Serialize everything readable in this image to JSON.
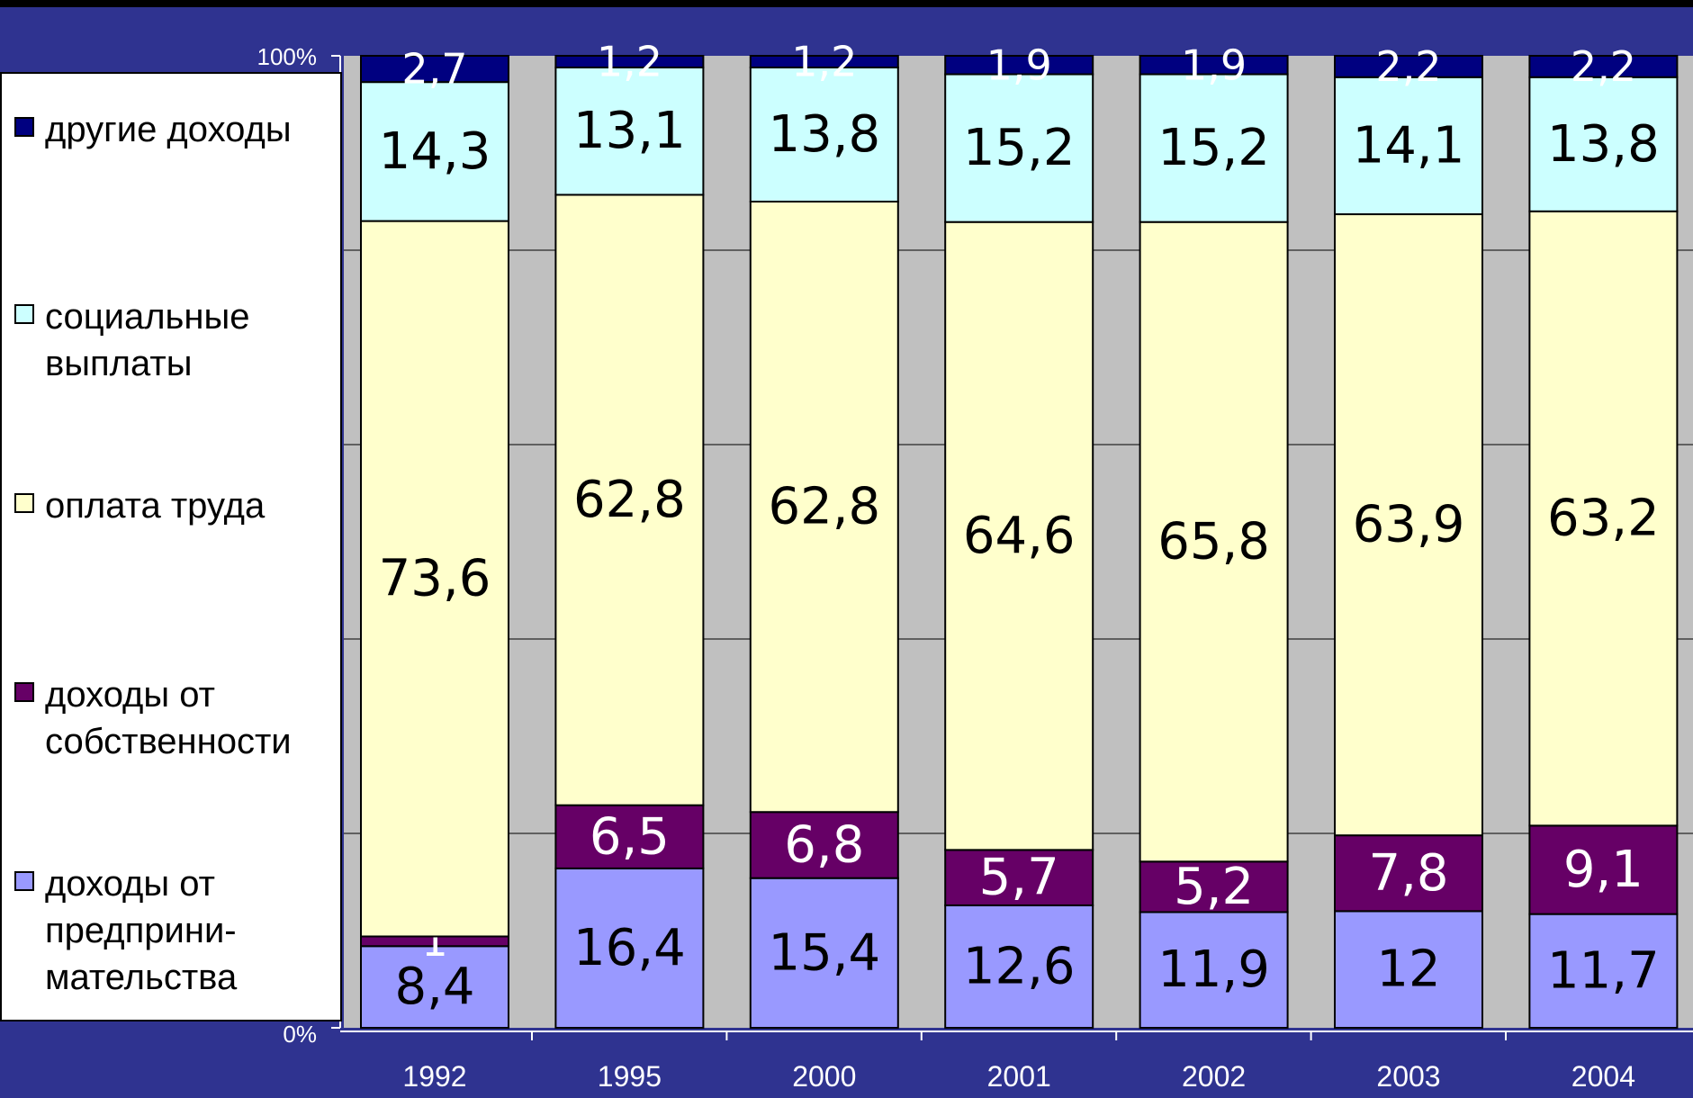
{
  "chart_data": {
    "type": "bar",
    "stacked": true,
    "percent": true,
    "categories": [
      "1992",
      "1995",
      "2000",
      "2001",
      "2002",
      "2003",
      "2004"
    ],
    "series": [
      {
        "name": "доходы от\nпредприни-\nмательства",
        "color": "#9999ff",
        "label_color": "#000000",
        "values": [
          8.4,
          16.4,
          15.4,
          12.6,
          11.9,
          12,
          11.7
        ],
        "labels": [
          "8,4",
          "16,4",
          "15,4",
          "12,6",
          "11,9",
          "12",
          "11,7"
        ]
      },
      {
        "name": "доходы от\nсобственности",
        "color": "#660066",
        "label_color": "#ffffff",
        "values": [
          1,
          6.5,
          6.8,
          5.7,
          5.2,
          7.8,
          9.1
        ],
        "labels": [
          "1",
          "6,5",
          "6,8",
          "5,7",
          "5,2",
          "7,8",
          "9,1"
        ]
      },
      {
        "name": "оплата труда",
        "color": "#ffffcc",
        "label_color": "#000000",
        "values": [
          73.6,
          62.8,
          62.8,
          64.6,
          65.8,
          63.9,
          63.2
        ],
        "labels": [
          "73,6",
          "62,8",
          "62,8",
          "64,6",
          "65,8",
          "63,9",
          "63,2"
        ]
      },
      {
        "name": "социальные\nвыплаты",
        "color": "#ccffff",
        "label_color": "#000000",
        "values": [
          14.3,
          13.1,
          13.8,
          15.2,
          15.2,
          14.1,
          13.8
        ],
        "labels": [
          "14,3",
          "13,1",
          "13,8",
          "15,2",
          "15,2",
          "14,1",
          "13,8"
        ]
      },
      {
        "name": "другие доходы",
        "color": "#000080",
        "label_color": "#ffffff",
        "values": [
          2.7,
          1.2,
          1.2,
          1.9,
          1.9,
          2.2,
          2.2
        ],
        "labels": [
          "2,7",
          "1,2",
          "1,2",
          "1,9",
          "1,9",
          "2,2",
          "2,2"
        ]
      }
    ],
    "y_ticks": [
      "0%",
      "100%"
    ],
    "ylim": [
      0,
      100
    ],
    "grid": true,
    "legend_position": "left",
    "legend_order": [
      4,
      3,
      2,
      1,
      0
    ]
  }
}
